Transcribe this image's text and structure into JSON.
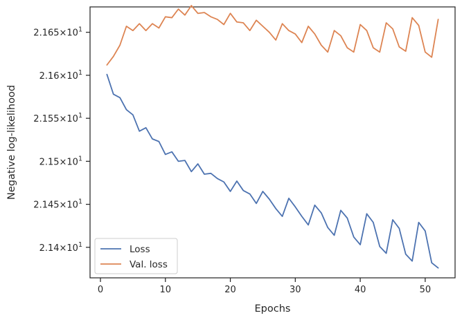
{
  "chart_data": {
    "type": "line",
    "xlabel": "Epochs",
    "ylabel": "Negative log-likelihood",
    "xlim": [
      -1.6,
      54.6
    ],
    "ylim": [
      21.3645,
      21.6795
    ],
    "x_ticks": [
      0,
      10,
      20,
      30,
      40,
      50
    ],
    "y_ticks": [
      {
        "value": 21.4,
        "mantissa": "2.14",
        "exponent": "1"
      },
      {
        "value": 21.45,
        "mantissa": "2.145",
        "exponent": "1"
      },
      {
        "value": 21.5,
        "mantissa": "2.15",
        "exponent": "1"
      },
      {
        "value": 21.55,
        "mantissa": "2.155",
        "exponent": "1"
      },
      {
        "value": 21.6,
        "mantissa": "2.16",
        "exponent": "1"
      },
      {
        "value": 21.65,
        "mantissa": "2.165",
        "exponent": "1"
      }
    ],
    "y_tick_times": "×",
    "y_tick_base": "10",
    "grid": false,
    "legend_position": "lower-left",
    "x": [
      1,
      2,
      3,
      4,
      5,
      6,
      7,
      8,
      9,
      10,
      11,
      12,
      13,
      14,
      15,
      16,
      17,
      18,
      19,
      20,
      21,
      22,
      23,
      24,
      25,
      26,
      27,
      28,
      29,
      30,
      31,
      32,
      33,
      34,
      35,
      36,
      37,
      38,
      39,
      40,
      41,
      42,
      43,
      44,
      45,
      46,
      47,
      48,
      49,
      50,
      51,
      52
    ],
    "series": [
      {
        "name": "Loss",
        "color": "#4c72b0",
        "values": [
          21.601,
          21.578,
          21.574,
          21.56,
          21.554,
          21.535,
          21.539,
          21.526,
          21.523,
          21.508,
          21.511,
          21.5,
          21.501,
          21.488,
          21.497,
          21.485,
          21.486,
          21.48,
          21.476,
          21.465,
          21.477,
          21.466,
          21.462,
          21.451,
          21.465,
          21.456,
          21.445,
          21.436,
          21.457,
          21.447,
          21.436,
          21.426,
          21.449,
          21.44,
          21.423,
          21.414,
          21.443,
          21.434,
          21.412,
          21.403,
          21.439,
          21.429,
          21.401,
          21.393,
          21.432,
          21.422,
          21.392,
          21.384,
          21.429,
          21.419,
          21.382,
          21.376
        ]
      },
      {
        "name": "Val. loss",
        "color": "#dd8452",
        "values": [
          21.612,
          21.622,
          21.635,
          21.657,
          21.652,
          21.66,
          21.652,
          21.66,
          21.655,
          21.668,
          21.667,
          21.677,
          21.67,
          21.681,
          21.672,
          21.673,
          21.668,
          21.665,
          21.659,
          21.672,
          21.662,
          21.661,
          21.652,
          21.664,
          21.657,
          21.65,
          21.641,
          21.66,
          21.652,
          21.648,
          21.638,
          21.657,
          21.648,
          21.635,
          21.627,
          21.652,
          21.646,
          21.632,
          21.627,
          21.659,
          21.652,
          21.632,
          21.627,
          21.661,
          21.654,
          21.633,
          21.628,
          21.667,
          21.658,
          21.627,
          21.621,
          21.665
        ]
      }
    ]
  }
}
